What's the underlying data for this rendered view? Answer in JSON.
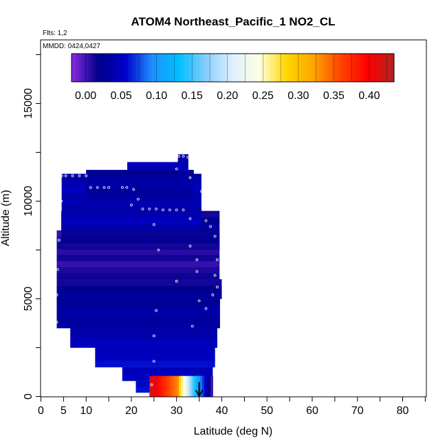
{
  "chart_data": {
    "type": "heatmap",
    "title": "ATOM4 Northeast_Pacific_1 NO2_CL",
    "annotations": [
      "Flts: 1,2",
      "MMDD: 0424,0427"
    ],
    "xlabel": "Latitude (deg N)",
    "ylabel": "Altitude (m)",
    "xlim": [
      0,
      85
    ],
    "ylim": [
      0,
      18000
    ],
    "x_ticks": [
      0,
      5,
      10,
      20,
      30,
      40,
      50,
      60,
      70,
      80
    ],
    "x_minor_ticks": [
      15,
      25,
      35,
      45,
      55,
      65,
      75,
      85
    ],
    "y_ticks": [
      0,
      5000,
      10000,
      15000
    ],
    "colorbar": {
      "range": [
        -0.02,
        0.435
      ],
      "ticks": [
        0.0,
        0.05,
        0.1,
        0.15,
        0.2,
        0.25,
        0.3,
        0.35,
        0.4
      ],
      "tick_labels": [
        "0.00",
        "0.05",
        "0.10",
        "0.15",
        "0.20",
        "0.25",
        "0.30",
        "0.35",
        "0.40"
      ],
      "colors": [
        "#8a2be2",
        "#00008b",
        "#0000cd",
        "#1e90ff",
        "#00bfff",
        "#87cefa",
        "#e0f0ff",
        "#ffffe0",
        "#ffd700",
        "#ffa500",
        "#ff4500",
        "#ff0000",
        "#b22222"
      ]
    },
    "curtain_bands": [
      {
        "alt": [
          11500,
          12400
        ],
        "lat": [
          30.3,
          32.6
        ],
        "value": 0.04
      },
      {
        "alt": [
          10000,
          12000
        ],
        "lat": [
          19.1,
          32.6
        ],
        "value": 0.05
      },
      {
        "alt": [
          10000,
          11600
        ],
        "lat": [
          10.0,
          33.8
        ],
        "value": 0.03
      },
      {
        "alt": [
          8500,
          11400
        ],
        "lat": [
          4.6,
          35.5
        ],
        "value": 0.04
      },
      {
        "alt": [
          7500,
          9500
        ],
        "lat": [
          4.5,
          39.5
        ],
        "value": 0.02
      },
      {
        "alt": [
          6000,
          8500
        ],
        "lat": [
          3.5,
          39.5
        ],
        "value": 0.01
      },
      {
        "alt": [
          5000,
          6000
        ],
        "lat": [
          3.5,
          40.0
        ],
        "value": 0.02
      },
      {
        "alt": [
          3500,
          5000
        ],
        "lat": [
          3.5,
          39.6
        ],
        "value": 0.03
      },
      {
        "alt": [
          2500,
          3500
        ],
        "lat": [
          6.5,
          39.0
        ],
        "value": 0.04
      },
      {
        "alt": [
          1500,
          2500
        ],
        "lat": [
          12.0,
          38.5
        ],
        "value": 0.05
      },
      {
        "alt": [
          800,
          1500
        ],
        "lat": [
          18.0,
          38.0
        ],
        "value": 0.05
      },
      {
        "alt": [
          200,
          800
        ],
        "lat": [
          21.0,
          38.0
        ],
        "value": 0.06
      }
    ],
    "surface_gradient": {
      "alt": [
        0,
        350
      ],
      "lat": [
        24.0,
        38.0
      ],
      "value_start": 0.42,
      "value_end": 0.2
    },
    "flight_points": [
      {
        "lat": 4.6,
        "alt": 11300
      },
      {
        "lat": 5.5,
        "alt": 11300
      },
      {
        "lat": 7.0,
        "alt": 11300
      },
      {
        "lat": 8.5,
        "alt": 11300
      },
      {
        "lat": 10.0,
        "alt": 11300
      },
      {
        "lat": 11.0,
        "alt": 10700
      },
      {
        "lat": 12.5,
        "alt": 10700
      },
      {
        "lat": 14.0,
        "alt": 10700
      },
      {
        "lat": 15.0,
        "alt": 10700
      },
      {
        "lat": 18.0,
        "alt": 10700
      },
      {
        "lat": 19.0,
        "alt": 10700
      },
      {
        "lat": 20.5,
        "alt": 10600
      },
      {
        "lat": 21.5,
        "alt": 10100
      },
      {
        "lat": 22.5,
        "alt": 9600
      },
      {
        "lat": 24.0,
        "alt": 9600
      },
      {
        "lat": 25.5,
        "alt": 9600
      },
      {
        "lat": 27.0,
        "alt": 9550
      },
      {
        "lat": 28.5,
        "alt": 9550
      },
      {
        "lat": 30.0,
        "alt": 9550
      },
      {
        "lat": 31.5,
        "alt": 9550
      },
      {
        "lat": 33.0,
        "alt": 9100
      },
      {
        "lat": 30.5,
        "alt": 12300
      },
      {
        "lat": 31.5,
        "alt": 12300
      },
      {
        "lat": 32.5,
        "alt": 12250
      },
      {
        "lat": 33.5,
        "alt": 12200
      },
      {
        "lat": 30.0,
        "alt": 11650
      },
      {
        "lat": 33.0,
        "alt": 11200
      },
      {
        "lat": 35.5,
        "alt": 10500
      },
      {
        "lat": 36.5,
        "alt": 9000
      },
      {
        "lat": 37.5,
        "alt": 8700
      },
      {
        "lat": 38.5,
        "alt": 8200
      },
      {
        "lat": 39.0,
        "alt": 7000
      },
      {
        "lat": 38.5,
        "alt": 6200
      },
      {
        "lat": 39.0,
        "alt": 5600
      },
      {
        "lat": 38.0,
        "alt": 5200
      },
      {
        "lat": 36.5,
        "alt": 4500
      },
      {
        "lat": 34.5,
        "alt": 6400
      },
      {
        "lat": 33.0,
        "alt": 7700
      },
      {
        "lat": 34.5,
        "alt": 7000
      },
      {
        "lat": 30.0,
        "alt": 5900
      },
      {
        "lat": 26.0,
        "alt": 7500
      },
      {
        "lat": 25.0,
        "alt": 8800
      },
      {
        "lat": 20.0,
        "alt": 9800
      },
      {
        "lat": 4.5,
        "alt": 10000
      },
      {
        "lat": 4.0,
        "alt": 8000
      },
      {
        "lat": 3.7,
        "alt": 6500
      },
      {
        "lat": 3.5,
        "alt": 5200
      },
      {
        "lat": 3.5,
        "alt": 3800
      },
      {
        "lat": 25.5,
        "alt": 4400
      },
      {
        "lat": 25.0,
        "alt": 3100
      },
      {
        "lat": 25.0,
        "alt": 1800
      },
      {
        "lat": 24.5,
        "alt": 600
      },
      {
        "lat": 35.0,
        "alt": 4900
      },
      {
        "lat": 33.5,
        "alt": 3600
      }
    ],
    "arrow": {
      "lat": 35.0,
      "alt_from": 600,
      "alt_to": 0
    }
  }
}
